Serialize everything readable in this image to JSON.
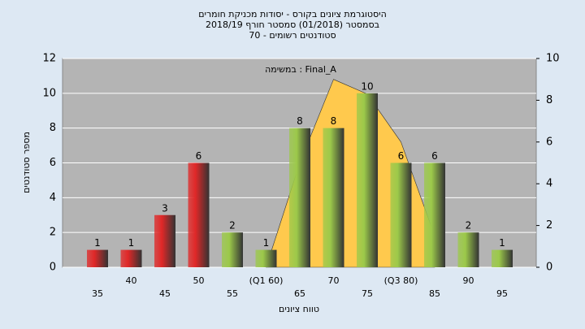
{
  "chart_data": {
    "type": "bar",
    "title_lines": [
      "היסטוגרמת ציונים בקורס - יסודות מכניקת חומרים",
      "בסמסטר (01/2018)  סמסטר חורף 2018/19",
      "סטודנטים רשומים - 70"
    ],
    "annotation": "Final_A : במשימה",
    "x_label": "טווח ציונים",
    "y_label": "מספר סטודנטים",
    "categories": [
      "35",
      "40",
      "45",
      "50",
      "55",
      "(Q1 60)",
      "65",
      "70",
      "75",
      "(Q3 80)",
      "85",
      "90",
      "95"
    ],
    "values": [
      1,
      1,
      3,
      6,
      2,
      1,
      8,
      8,
      10,
      6,
      6,
      2,
      1
    ],
    "colors": [
      "#e02828",
      "#e02828",
      "#e02828",
      "#e02828",
      "#9cc94a",
      "#9cc94a",
      "#9cc94a",
      "#9cc94a",
      "#9cc94a",
      "#9cc94a",
      "#9cc94a",
      "#9cc94a",
      "#9cc94a"
    ],
    "area": {
      "type": "area",
      "axis": "y2",
      "color": "#ffc94d",
      "values": [
        null,
        null,
        null,
        null,
        null,
        0,
        5,
        9,
        8.3,
        6,
        1.5,
        null,
        null
      ]
    },
    "ylim": [
      0,
      12
    ],
    "yticks": [
      0,
      2,
      4,
      6,
      8,
      10,
      12
    ],
    "y2lim": [
      0,
      10
    ],
    "y2ticks": [
      0,
      2,
      4,
      6,
      8,
      10
    ],
    "grid": true
  }
}
